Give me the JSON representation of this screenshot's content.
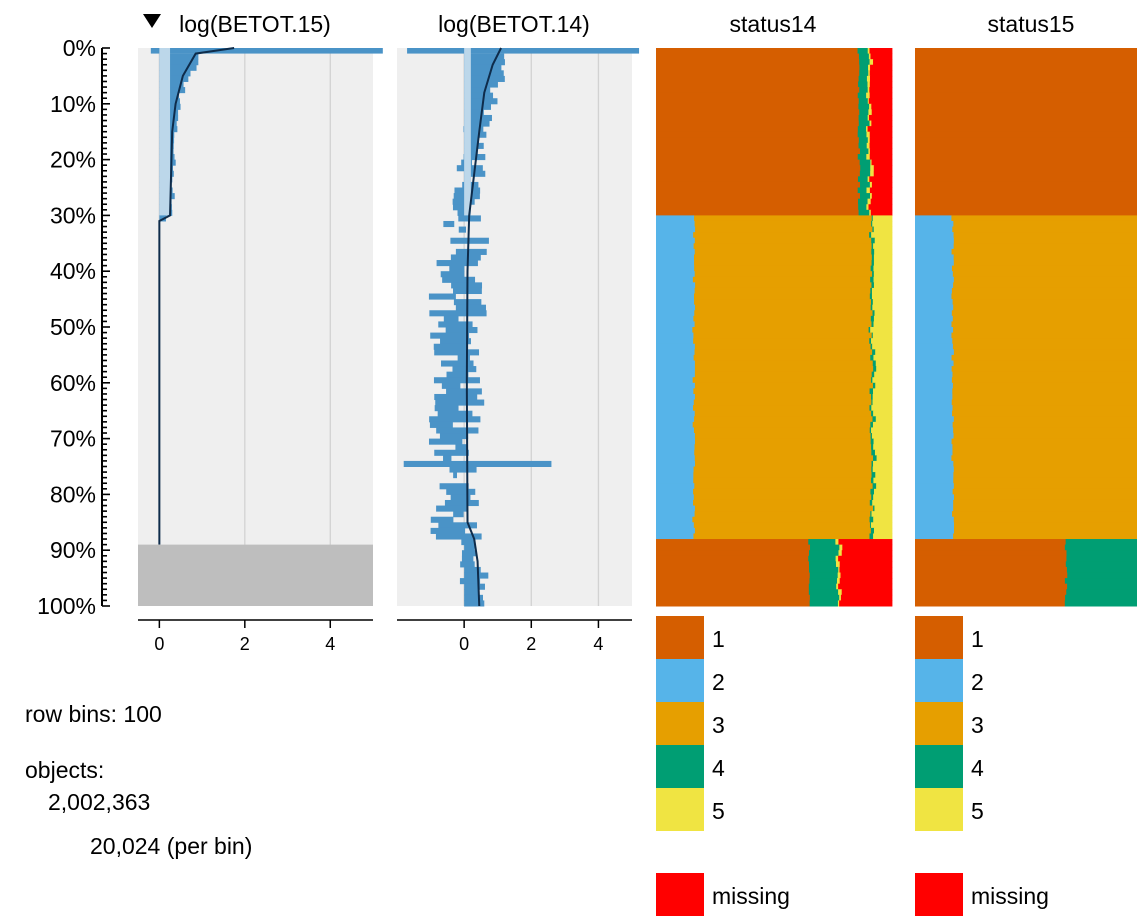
{
  "chart_data": {
    "type": "tableplot",
    "row_axis": {
      "tick_labels": [
        "0%",
        "10%",
        "20%",
        "30%",
        "40%",
        "50%",
        "60%",
        "70%",
        "80%",
        "90%",
        "100%"
      ],
      "bins": 100
    },
    "numeric_columns": [
      {
        "name": "log(BETOT.15)",
        "sorted": true,
        "sort_icon": "triangle-down-icon",
        "xticks": [
          "0",
          "2",
          "4"
        ],
        "xlim": [
          -0.5,
          5.0
        ],
        "mean_profile": [
          [
            0,
            1.75
          ],
          [
            1,
            0.85
          ],
          [
            5,
            0.55
          ],
          [
            10,
            0.38
          ],
          [
            15,
            0.3
          ],
          [
            30,
            0.25
          ],
          [
            31,
            0.0
          ],
          [
            89,
            0.0
          ]
        ],
        "missing_rows_pct": [
          89,
          100
        ]
      },
      {
        "name": "log(BETOT.14)",
        "sorted": false,
        "xticks": [
          "0",
          "2",
          "4"
        ],
        "xlim": [
          -2.0,
          5.0
        ],
        "mean_profile": [
          [
            0,
            1.1
          ],
          [
            3,
            0.85
          ],
          [
            8,
            0.6
          ],
          [
            15,
            0.45
          ],
          [
            20,
            0.35
          ],
          [
            30,
            0.15
          ],
          [
            40,
            0.1
          ],
          [
            60,
            0.08
          ],
          [
            85,
            0.1
          ],
          [
            88,
            0.3
          ],
          [
            92,
            0.4
          ],
          [
            100,
            0.45
          ]
        ],
        "outlier_spread": [
          {
            "row_pct": 74,
            "from": -1.8,
            "to": 2.6
          }
        ]
      }
    ],
    "categorical_columns": [
      {
        "name": "status14",
        "categories": [
          {
            "label": "1",
            "color": "#D55E00"
          },
          {
            "label": "2",
            "color": "#56B4E9"
          },
          {
            "label": "3",
            "color": "#E69F00"
          },
          {
            "label": "4",
            "color": "#009E73"
          },
          {
            "label": "5",
            "color": "#F0E442"
          },
          {
            "label": "missing",
            "color": "#FF0000"
          }
        ],
        "bin_groups": [
          {
            "rows_pct": [
              0,
              30
            ],
            "shares": {
              "1": 0.86,
              "4": 0.04,
              "5": 0.01,
              "missing": 0.04
            }
          },
          {
            "rows_pct": [
              30,
              88
            ],
            "shares": {
              "2": 0.16,
              "3": 0.75,
              "4": 0.01,
              "5": 0.07
            }
          },
          {
            "rows_pct": [
              88,
              100
            ],
            "shares": {
              "1": 0.65,
              "4": 0.12,
              "5": 0.01,
              "missing": 0.22
            }
          }
        ]
      },
      {
        "name": "status15",
        "categories": [
          {
            "label": "1",
            "color": "#D55E00"
          },
          {
            "label": "2",
            "color": "#56B4E9"
          },
          {
            "label": "3",
            "color": "#E69F00"
          },
          {
            "label": "4",
            "color": "#009E73"
          },
          {
            "label": "5",
            "color": "#F0E442"
          },
          {
            "label": "missing",
            "color": "#FF0000"
          }
        ],
        "bin_groups": [
          {
            "rows_pct": [
              0,
              30
            ],
            "shares": {
              "1": 1.0
            }
          },
          {
            "rows_pct": [
              30,
              88
            ],
            "shares": {
              "2": 0.17,
              "3": 0.83
            }
          },
          {
            "rows_pct": [
              88,
              100
            ],
            "shares": {
              "1": 0.68,
              "4": 0.32
            }
          }
        ]
      }
    ],
    "info": {
      "row_bins_text": "row bins: 100",
      "objects_label": "objects:",
      "objects_count": "2,002,363",
      "per_bin_text": "20,024 (per bin)"
    },
    "colors": {
      "panel_bg": "#EFEFEF",
      "gridline": "#D2D2D2",
      "bar": "#4A93C7",
      "sd_band": "#BCD7EA",
      "mean_line": "#0E2C4B",
      "missing_block": "#BEBEBE"
    }
  }
}
